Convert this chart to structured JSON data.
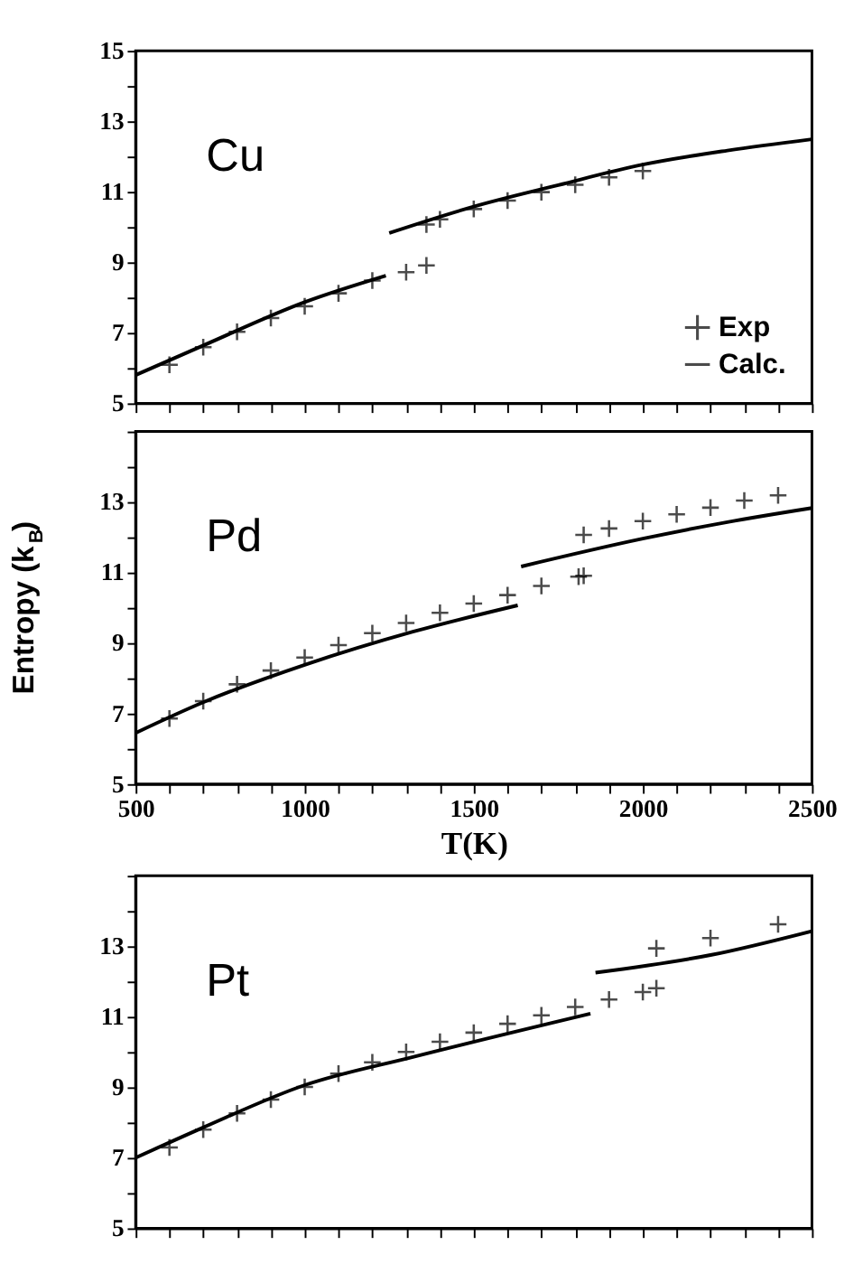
{
  "chart_data": [
    {
      "type": "scatter",
      "xlim": [
        500,
        2500
      ],
      "ylim": [
        5,
        15
      ],
      "tick_labels": "y",
      "legend": "bottom right",
      "annotations": [
        "Cu"
      ],
      "xticks": [
        500,
        {
          "value": 600,
          "label": null
        },
        {
          "value": 700,
          "label": null
        },
        {
          "value": 800,
          "label": null
        },
        {
          "value": 900,
          "label": null
        },
        1000,
        {
          "value": 1100,
          "label": null
        },
        {
          "value": 1200,
          "label": null
        },
        {
          "value": 1300,
          "label": null
        },
        {
          "value": 1400,
          "label": null
        },
        1500,
        {
          "value": 1600,
          "label": null
        },
        {
          "value": 1700,
          "label": null
        },
        {
          "value": 1800,
          "label": null
        },
        {
          "value": 1900,
          "label": null
        },
        2000,
        {
          "value": 2100,
          "label": null
        },
        {
          "value": 2200,
          "label": null
        },
        {
          "value": 2300,
          "label": null
        },
        {
          "value": 2400,
          "label": null
        },
        2500
      ],
      "yticks": [
        5,
        {
          "value": 6,
          "label": null
        },
        7,
        {
          "value": 8,
          "label": null
        },
        9,
        {
          "value": 10,
          "label": null
        },
        11,
        {
          "value": 12,
          "label": null
        },
        13,
        {
          "value": 14,
          "label": null
        },
        15
      ],
      "series": [
        {
          "name": "Exp",
          "marker": "cross",
          "color": "#000000",
          "x": [
            600,
            700,
            800,
            900,
            1000,
            1100,
            1200,
            1300,
            1360,
            1360,
            1400,
            1500,
            1600,
            1700,
            1800,
            1900,
            2000
          ],
          "values": [
            6.09,
            6.59,
            7.03,
            7.42,
            7.75,
            8.12,
            8.48,
            8.72,
            8.91,
            10.07,
            10.22,
            10.51,
            10.75,
            10.99,
            11.2,
            11.41,
            11.59
          ]
        },
        {
          "name": "Calc.",
          "type": "line",
          "color": "#000000",
          "line_style": "solid",
          "x": [
            500,
            700,
            1000,
            1240,
            1245,
            1250,
            1500,
            1750,
            2000,
            2250,
            2500
          ],
          "values": [
            5.8,
            6.64,
            7.87,
            8.62,
            null,
            9.83,
            10.58,
            11.19,
            11.77,
            12.17,
            12.49
          ]
        }
      ]
    },
    {
      "type": "scatter",
      "xlim": [
        500,
        2500
      ],
      "ylim": [
        5,
        15
      ],
      "xlabel": "T(K)",
      "ylabel": "Entropy (k$_{B}$)",
      "annotations": [
        "Pd"
      ],
      "xticks": [
        500,
        {
          "value": 600,
          "label": null
        },
        {
          "value": 700,
          "label": null
        },
        {
          "value": 800,
          "label": null
        },
        {
          "value": 900,
          "label": null
        },
        1000,
        {
          "value": 1100,
          "label": null
        },
        {
          "value": 1200,
          "label": null
        },
        {
          "value": 1300,
          "label": null
        },
        {
          "value": 1400,
          "label": null
        },
        1500,
        {
          "value": 1600,
          "label": null
        },
        {
          "value": 1700,
          "label": null
        },
        {
          "value": 1800,
          "label": null
        },
        {
          "value": 1900,
          "label": null
        },
        2000,
        {
          "value": 2100,
          "label": null
        },
        {
          "value": 2200,
          "label": null
        },
        {
          "value": 2300,
          "label": null
        },
        {
          "value": 2400,
          "label": null
        },
        2500
      ],
      "yticks": [
        5,
        {
          "value": 6,
          "label": null
        },
        7,
        {
          "value": 8,
          "label": null
        },
        9,
        {
          "value": 10,
          "label": null
        },
        11,
        {
          "value": 12,
          "label": null
        },
        13,
        {
          "value": 14,
          "label": null
        },
        {
          "value": 15,
          "label": null
        }
      ],
      "series": [
        {
          "marker": "cross",
          "color": "#000000",
          "x": [
            600,
            700,
            800,
            900,
            1000,
            1100,
            1200,
            1300,
            1400,
            1500,
            1600,
            1700,
            1810,
            1825,
            1825,
            1900,
            2000,
            2100,
            2200,
            2300,
            2400
          ],
          "values": [
            6.86,
            7.35,
            7.83,
            8.22,
            8.59,
            8.94,
            9.28,
            9.57,
            9.86,
            10.12,
            10.36,
            10.62,
            10.88,
            10.91,
            12.07,
            12.25,
            12.46,
            12.65,
            12.84,
            13.04,
            13.19
          ]
        },
        {
          "type": "line",
          "color": "#000000",
          "line_style": "solid",
          "x": [
            500,
            700,
            1000,
            1320,
            1630,
            1635,
            1640,
            2000,
            2250,
            2500
          ],
          "values": [
            6.45,
            7.32,
            8.38,
            9.32,
            10.07,
            null,
            11.17,
            11.96,
            12.43,
            12.83
          ]
        }
      ]
    },
    {
      "type": "scatter",
      "xlim": [
        500,
        2500
      ],
      "ylim": [
        5,
        15
      ],
      "tick_labels": "y",
      "annotations": [
        "Pt"
      ],
      "xticks": [
        500,
        {
          "value": 600,
          "label": null
        },
        {
          "value": 700,
          "label": null
        },
        {
          "value": 800,
          "label": null
        },
        {
          "value": 900,
          "label": null
        },
        1000,
        {
          "value": 1100,
          "label": null
        },
        {
          "value": 1200,
          "label": null
        },
        {
          "value": 1300,
          "label": null
        },
        {
          "value": 1400,
          "label": null
        },
        1500,
        {
          "value": 1600,
          "label": null
        },
        {
          "value": 1700,
          "label": null
        },
        {
          "value": 1800,
          "label": null
        },
        {
          "value": 1900,
          "label": null
        },
        2000,
        {
          "value": 2100,
          "label": null
        },
        {
          "value": 2200,
          "label": null
        },
        {
          "value": 2300,
          "label": null
        },
        {
          "value": 2400,
          "label": null
        },
        2500
      ],
      "yticks": [
        5,
        {
          "value": 6,
          "label": null
        },
        7,
        {
          "value": 8,
          "label": null
        },
        9,
        {
          "value": 10,
          "label": null
        },
        11,
        {
          "value": 12,
          "label": null
        },
        13,
        {
          "value": 14,
          "label": null
        },
        {
          "value": 15,
          "label": null
        }
      ],
      "series": [
        {
          "marker": "cross",
          "color": "#000000",
          "x": [
            600,
            700,
            800,
            900,
            1000,
            1100,
            1200,
            1300,
            1400,
            1500,
            1600,
            1700,
            1800,
            1900,
            2000,
            2040,
            2040,
            2200,
            2400
          ],
          "values": [
            7.29,
            7.8,
            8.26,
            8.65,
            9.01,
            9.39,
            9.71,
            10.0,
            10.29,
            10.55,
            10.8,
            11.04,
            11.28,
            11.49,
            11.7,
            11.81,
            12.94,
            13.23,
            13.62
          ]
        },
        {
          "type": "line",
          "color": "#000000",
          "line_style": "solid",
          "x": [
            500,
            700,
            1000,
            1320,
            1845,
            1850,
            1860,
            2200,
            2500
          ],
          "values": [
            7.0,
            7.86,
            9.06,
            9.86,
            11.09,
            null,
            12.25,
            12.75,
            13.43
          ]
        }
      ]
    }
  ]
}
